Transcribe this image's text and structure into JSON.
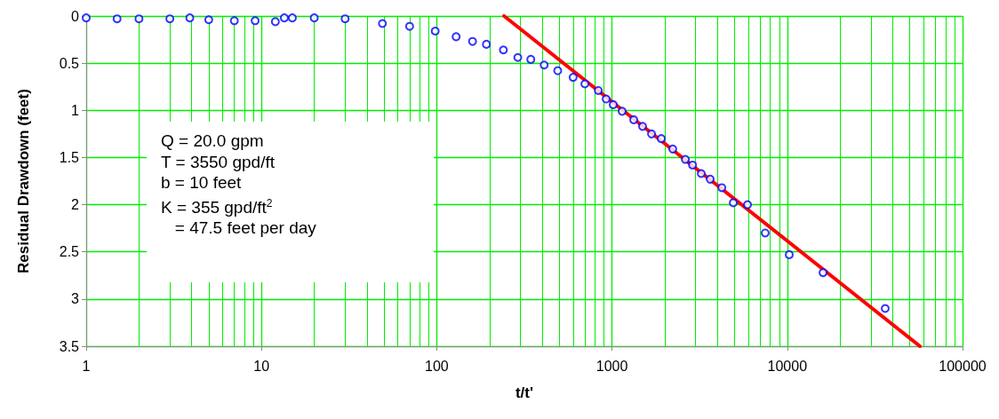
{
  "chart_data": {
    "type": "scatter",
    "xlabel": "t/t'",
    "ylabel": "Residual Drawdown (feet)",
    "log": "x",
    "grid": true,
    "xlim": [
      1,
      100000
    ],
    "xticks": [
      1,
      {
        "value": 2,
        "label": null
      },
      {
        "value": 3,
        "label": null
      },
      {
        "value": 4,
        "label": null
      },
      {
        "value": 5,
        "label": null
      },
      {
        "value": 6,
        "label": null
      },
      {
        "value": 7,
        "label": null
      },
      {
        "value": 8,
        "label": null
      },
      {
        "value": 9,
        "label": null
      },
      10,
      {
        "value": 20,
        "label": null
      },
      {
        "value": 30,
        "label": null
      },
      {
        "value": 40,
        "label": null
      },
      {
        "value": 50,
        "label": null
      },
      {
        "value": 60,
        "label": null
      },
      {
        "value": 70,
        "label": null
      },
      {
        "value": 80,
        "label": null
      },
      {
        "value": 90,
        "label": null
      },
      100,
      {
        "value": 200,
        "label": null
      },
      {
        "value": 300,
        "label": null
      },
      {
        "value": 400,
        "label": null
      },
      {
        "value": 500,
        "label": null
      },
      {
        "value": 600,
        "label": null
      },
      {
        "value": 700,
        "label": null
      },
      {
        "value": 800,
        "label": null
      },
      {
        "value": 900,
        "label": null
      },
      1000,
      {
        "value": 2000,
        "label": null
      },
      {
        "value": 3000,
        "label": null
      },
      {
        "value": 4000,
        "label": null
      },
      {
        "value": 5000,
        "label": null
      },
      {
        "value": 6000,
        "label": null
      },
      {
        "value": 7000,
        "label": null
      },
      {
        "value": 8000,
        "label": null
      },
      {
        "value": 9000,
        "label": null
      },
      10000,
      {
        "value": 20000,
        "label": null
      },
      {
        "value": 30000,
        "label": null
      },
      {
        "value": 40000,
        "label": null
      },
      {
        "value": 50000,
        "label": null
      },
      {
        "value": 60000,
        "label": null
      },
      {
        "value": 70000,
        "label": null
      },
      {
        "value": 80000,
        "label": null
      },
      {
        "value": 90000,
        "label": null
      },
      100000
    ],
    "ylim": [
      3.5,
      0
    ],
    "yticks": [
      0,
      0.5,
      1,
      1.5,
      2,
      2.5,
      3,
      3.5
    ],
    "series": [
      {
        "color": "#0000ff",
        "marker": "circle",
        "x": [
          1,
          1.5,
          2,
          3,
          3.9,
          5,
          7,
          9.2,
          12,
          13.5,
          15,
          20,
          30,
          49,
          70,
          98,
          129,
          160,
          192,
          240,
          290,
          344,
          410,
          490,
          600,
          700,
          835,
          926,
          1016,
          1142,
          1330,
          1494,
          1680,
          1910,
          2220,
          2620,
          2880,
          3230,
          3630,
          4230,
          4920,
          5930,
          7480,
          10260,
          16000,
          36200
        ],
        "values": [
          0.02,
          0.03,
          0.03,
          0.03,
          0.02,
          0.04,
          0.05,
          0.05,
          0.06,
          0.02,
          0.02,
          0.02,
          0.03,
          0.08,
          0.11,
          0.16,
          0.22,
          0.27,
          0.3,
          0.36,
          0.44,
          0.46,
          0.52,
          0.58,
          0.65,
          0.72,
          0.79,
          0.88,
          0.94,
          1.01,
          1.1,
          1.17,
          1.25,
          1.3,
          1.41,
          1.52,
          1.58,
          1.67,
          1.73,
          1.82,
          1.98,
          2.0,
          2.3,
          2.53,
          2.72,
          3.1
        ]
      },
      {
        "type": "line",
        "color": "#ff0000",
        "marker": "none",
        "line_style": "solid",
        "x": [
          242,
          57100
        ],
        "values": [
          0,
          3.5
        ]
      }
    ],
    "annotations": [
      "Q = 20.0 gpm",
      "T = 3550 gpd/ft",
      "b = 10 feet",
      "K = 355 gpd/ft$^{2}$",
      "   = 47.5 feet per day"
    ]
  }
}
